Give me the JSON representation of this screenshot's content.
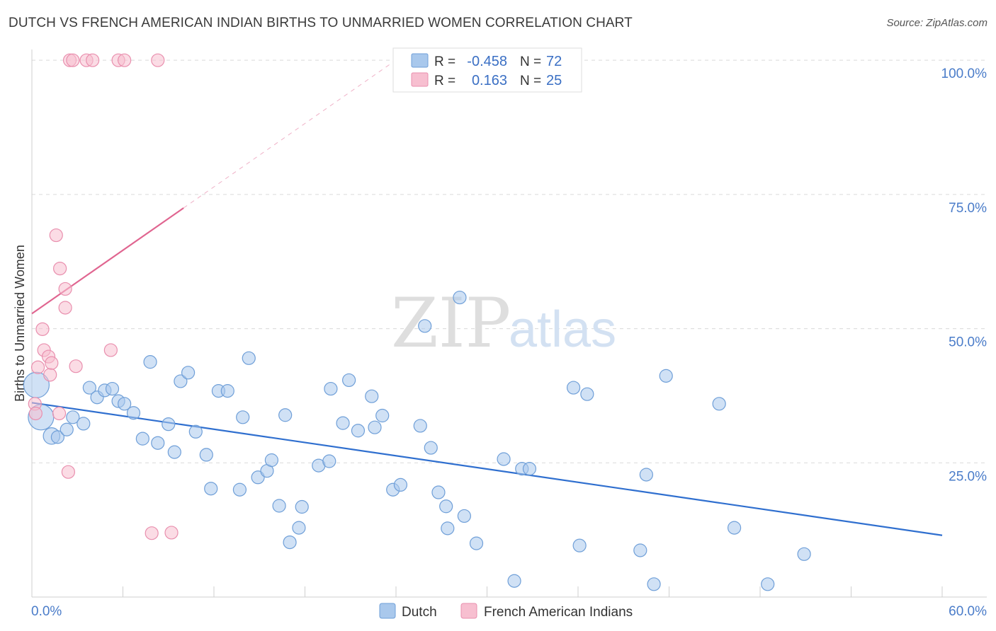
{
  "title": "DUTCH VS FRENCH AMERICAN INDIAN BIRTHS TO UNMARRIED WOMEN CORRELATION CHART",
  "source": "Source: ZipAtlas.com",
  "watermark": {
    "zip": "ZIP",
    "atlas": "atlas"
  },
  "colors": {
    "dutch_fill": "#a9c8ec",
    "dutch_stroke": "#6f9fd8",
    "dutch_line": "#2f6fcf",
    "french_fill": "#f7bfd0",
    "french_stroke": "#e98fae",
    "french_line": "#e06590",
    "axis_label": "#4a7cc9",
    "grid": "#d9d9d9"
  },
  "legend": {
    "rows": [
      {
        "r_label": "R =",
        "r_value": "-0.458",
        "n_label": "N =",
        "n_value": "72"
      },
      {
        "r_label": "R =",
        "r_value": "0.163",
        "n_label": "N =",
        "n_value": "25"
      }
    ]
  },
  "bottom_legend": {
    "dutch": "Dutch",
    "french": "French American Indians"
  },
  "chart_data": {
    "type": "scatter",
    "title": "DUTCH VS FRENCH AMERICAN INDIAN BIRTHS TO UNMARRIED WOMEN CORRELATION CHART",
    "xlabel": "",
    "ylabel": "Births to Unmarried Women",
    "xlim": [
      0,
      60
    ],
    "ylim": [
      0,
      102
    ],
    "x_tick_labels": {
      "min": "0.0%",
      "max": "60.0%"
    },
    "y_ticks": [
      {
        "value": 25,
        "label": "25.0%"
      },
      {
        "value": 50,
        "label": "50.0%"
      },
      {
        "value": 75,
        "label": "75.0%"
      },
      {
        "value": 100,
        "label": "100.0%"
      }
    ],
    "series": [
      {
        "name": "Dutch",
        "r": -0.458,
        "n": 72,
        "trend": {
          "x0": 0,
          "y0": 36.2,
          "x1": 60,
          "y1": 11.5,
          "solid_until": 60
        },
        "points": [
          {
            "x": 0.3,
            "y": 39.5,
            "s": 2
          },
          {
            "x": 0.6,
            "y": 33.5,
            "s": 2
          },
          {
            "x": 1.3,
            "y": 30.0,
            "s": 1.3
          },
          {
            "x": 1.7,
            "y": 29.8,
            "s": 1
          },
          {
            "x": 2.3,
            "y": 31.2,
            "s": 1
          },
          {
            "x": 2.7,
            "y": 33.5,
            "s": 1
          },
          {
            "x": 3.4,
            "y": 32.3,
            "s": 1
          },
          {
            "x": 3.8,
            "y": 39.0,
            "s": 1
          },
          {
            "x": 4.3,
            "y": 37.2,
            "s": 1
          },
          {
            "x": 4.8,
            "y": 38.5,
            "s": 1
          },
          {
            "x": 5.3,
            "y": 38.8,
            "s": 1
          },
          {
            "x": 5.7,
            "y": 36.5,
            "s": 1
          },
          {
            "x": 6.1,
            "y": 36.0,
            "s": 1
          },
          {
            "x": 6.7,
            "y": 34.3,
            "s": 1
          },
          {
            "x": 7.3,
            "y": 29.5,
            "s": 1
          },
          {
            "x": 7.8,
            "y": 43.8,
            "s": 1
          },
          {
            "x": 8.3,
            "y": 28.7,
            "s": 1
          },
          {
            "x": 9.0,
            "y": 32.2,
            "s": 1
          },
          {
            "x": 9.4,
            "y": 27.0,
            "s": 1
          },
          {
            "x": 9.8,
            "y": 40.2,
            "s": 1
          },
          {
            "x": 10.3,
            "y": 41.8,
            "s": 1
          },
          {
            "x": 10.8,
            "y": 30.8,
            "s": 1
          },
          {
            "x": 11.5,
            "y": 26.5,
            "s": 1
          },
          {
            "x": 11.8,
            "y": 20.2,
            "s": 1
          },
          {
            "x": 12.3,
            "y": 38.4,
            "s": 1
          },
          {
            "x": 12.9,
            "y": 38.4,
            "s": 1
          },
          {
            "x": 13.7,
            "y": 20.0,
            "s": 1
          },
          {
            "x": 13.9,
            "y": 33.5,
            "s": 1
          },
          {
            "x": 14.3,
            "y": 44.5,
            "s": 1
          },
          {
            "x": 14.9,
            "y": 22.3,
            "s": 1
          },
          {
            "x": 15.5,
            "y": 23.5,
            "s": 1
          },
          {
            "x": 15.8,
            "y": 25.5,
            "s": 1
          },
          {
            "x": 16.3,
            "y": 17.0,
            "s": 1
          },
          {
            "x": 16.7,
            "y": 33.9,
            "s": 1
          },
          {
            "x": 17.0,
            "y": 10.2,
            "s": 1
          },
          {
            "x": 17.6,
            "y": 12.9,
            "s": 1
          },
          {
            "x": 17.8,
            "y": 16.8,
            "s": 1
          },
          {
            "x": 18.9,
            "y": 24.5,
            "s": 1
          },
          {
            "x": 19.6,
            "y": 25.3,
            "s": 1
          },
          {
            "x": 19.7,
            "y": 38.8,
            "s": 1
          },
          {
            "x": 20.5,
            "y": 32.4,
            "s": 1
          },
          {
            "x": 20.9,
            "y": 40.4,
            "s": 1
          },
          {
            "x": 21.5,
            "y": 31.0,
            "s": 1
          },
          {
            "x": 22.4,
            "y": 37.4,
            "s": 1
          },
          {
            "x": 22.6,
            "y": 31.6,
            "s": 1
          },
          {
            "x": 23.1,
            "y": 33.8,
            "s": 1
          },
          {
            "x": 23.8,
            "y": 20.0,
            "s": 1
          },
          {
            "x": 24.3,
            "y": 20.9,
            "s": 1
          },
          {
            "x": 25.6,
            "y": 31.9,
            "s": 1
          },
          {
            "x": 25.9,
            "y": 50.5,
            "s": 1
          },
          {
            "x": 26.3,
            "y": 27.8,
            "s": 1
          },
          {
            "x": 26.8,
            "y": 19.5,
            "s": 1
          },
          {
            "x": 27.3,
            "y": 16.9,
            "s": 1
          },
          {
            "x": 27.4,
            "y": 12.8,
            "s": 1
          },
          {
            "x": 28.2,
            "y": 55.8,
            "s": 1
          },
          {
            "x": 28.5,
            "y": 15.1,
            "s": 1
          },
          {
            "x": 29.3,
            "y": 10.0,
            "s": 1
          },
          {
            "x": 31.1,
            "y": 25.7,
            "s": 1
          },
          {
            "x": 31.8,
            "y": 3.0,
            "s": 1
          },
          {
            "x": 32.3,
            "y": 23.9,
            "s": 1
          },
          {
            "x": 32.8,
            "y": 23.9,
            "s": 1
          },
          {
            "x": 35.7,
            "y": 39.0,
            "s": 1
          },
          {
            "x": 36.1,
            "y": 9.6,
            "s": 1
          },
          {
            "x": 36.6,
            "y": 37.8,
            "s": 1
          },
          {
            "x": 40.1,
            "y": 8.7,
            "s": 1
          },
          {
            "x": 40.5,
            "y": 22.8,
            "s": 1
          },
          {
            "x": 41.0,
            "y": 2.4,
            "s": 1
          },
          {
            "x": 41.8,
            "y": 41.2,
            "s": 1
          },
          {
            "x": 45.3,
            "y": 36.0,
            "s": 1
          },
          {
            "x": 46.3,
            "y": 12.9,
            "s": 1
          },
          {
            "x": 48.5,
            "y": 2.4,
            "s": 1
          },
          {
            "x": 50.9,
            "y": 8.0,
            "s": 1
          }
        ]
      },
      {
        "name": "French American Indians",
        "r": 0.163,
        "n": 25,
        "trend": {
          "x0": 0,
          "y0": 52.8,
          "x1": 25,
          "y1": 102,
          "solid_until": 10
        },
        "points": [
          {
            "x": 0.2,
            "y": 36.0,
            "s": 1
          },
          {
            "x": 0.25,
            "y": 34.2,
            "s": 1
          },
          {
            "x": 0.4,
            "y": 42.8,
            "s": 1
          },
          {
            "x": 0.7,
            "y": 49.9,
            "s": 1
          },
          {
            "x": 0.8,
            "y": 46.0,
            "s": 1
          },
          {
            "x": 1.1,
            "y": 44.8,
            "s": 1
          },
          {
            "x": 1.2,
            "y": 41.4,
            "s": 1
          },
          {
            "x": 1.3,
            "y": 43.6,
            "s": 1
          },
          {
            "x": 1.6,
            "y": 67.4,
            "s": 1
          },
          {
            "x": 1.8,
            "y": 34.2,
            "s": 1
          },
          {
            "x": 1.85,
            "y": 61.2,
            "s": 1
          },
          {
            "x": 2.2,
            "y": 57.4,
            "s": 1
          },
          {
            "x": 2.2,
            "y": 53.9,
            "s": 1
          },
          {
            "x": 2.4,
            "y": 23.3,
            "s": 1
          },
          {
            "x": 2.5,
            "y": 100.0,
            "s": 1
          },
          {
            "x": 2.7,
            "y": 100.0,
            "s": 1
          },
          {
            "x": 2.9,
            "y": 43.0,
            "s": 1
          },
          {
            "x": 3.6,
            "y": 100.0,
            "s": 1
          },
          {
            "x": 4.0,
            "y": 100.0,
            "s": 1
          },
          {
            "x": 5.2,
            "y": 46.0,
            "s": 1
          },
          {
            "x": 5.7,
            "y": 100.0,
            "s": 1
          },
          {
            "x": 6.1,
            "y": 100.0,
            "s": 1
          },
          {
            "x": 7.9,
            "y": 11.9,
            "s": 1
          },
          {
            "x": 8.3,
            "y": 100.0,
            "s": 1
          },
          {
            "x": 9.2,
            "y": 12.0,
            "s": 1
          }
        ]
      }
    ]
  }
}
